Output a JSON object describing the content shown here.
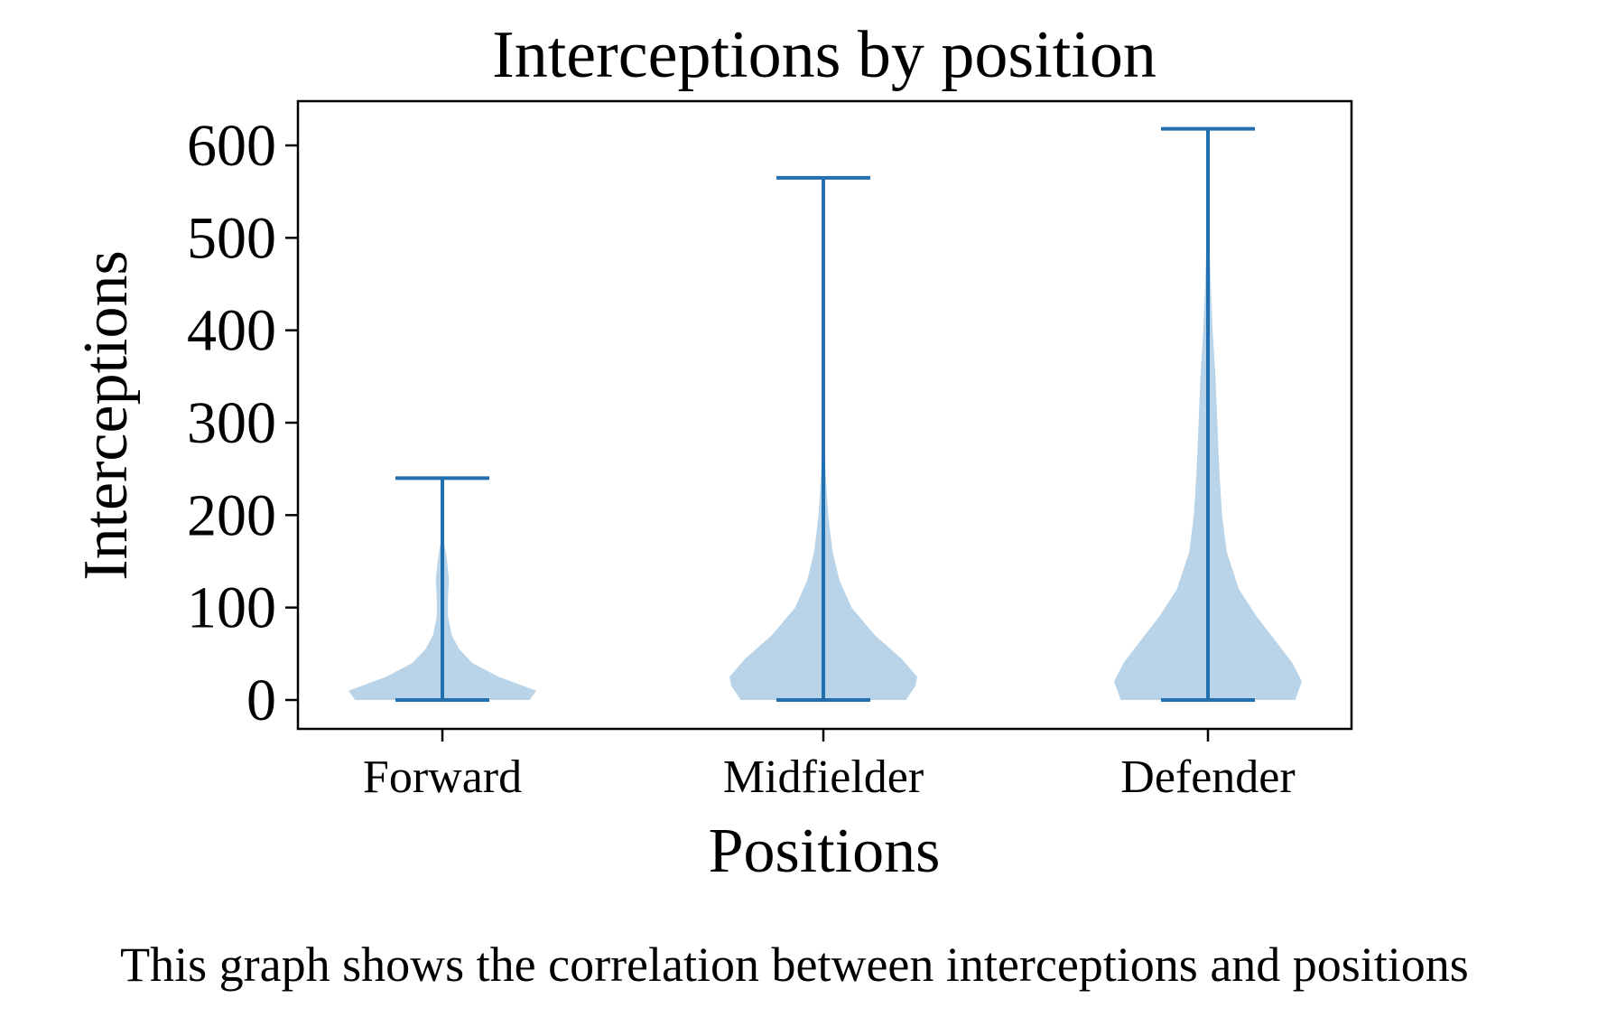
{
  "chart_data": {
    "type": "violin",
    "title": "Interceptions by position",
    "xlabel": "Positions",
    "ylabel": "Interceptions",
    "caption": "This graph shows the correlation between interceptions and positions",
    "categories": [
      "Forward",
      "Midfielder",
      "Defender"
    ],
    "ylim": [
      -30,
      650
    ],
    "yticks": [
      0,
      100,
      200,
      300,
      400,
      500,
      600
    ],
    "colors": {
      "body": "#b9d4e8",
      "line": "#2370b0"
    },
    "grid": false,
    "series": [
      {
        "category": "Forward",
        "min": 0,
        "max": 240,
        "density": [
          [
            0,
            0.93
          ],
          [
            10,
            1.0
          ],
          [
            25,
            0.6
          ],
          [
            40,
            0.32
          ],
          [
            55,
            0.18
          ],
          [
            70,
            0.1
          ],
          [
            90,
            0.06
          ],
          [
            110,
            0.06
          ],
          [
            130,
            0.07
          ],
          [
            150,
            0.05
          ],
          [
            170,
            0.02
          ],
          [
            190,
            0.01
          ],
          [
            240,
            0
          ]
        ]
      },
      {
        "category": "Midfielder",
        "min": 0,
        "max": 565,
        "density": [
          [
            0,
            0.88
          ],
          [
            15,
            0.98
          ],
          [
            25,
            1.0
          ],
          [
            45,
            0.83
          ],
          [
            70,
            0.55
          ],
          [
            100,
            0.3
          ],
          [
            130,
            0.17
          ],
          [
            160,
            0.1
          ],
          [
            200,
            0.05
          ],
          [
            250,
            0.022
          ],
          [
            300,
            0.012
          ],
          [
            400,
            0.008
          ],
          [
            460,
            0.006
          ],
          [
            520,
            0.003
          ],
          [
            565,
            0
          ]
        ]
      },
      {
        "category": "Defender",
        "min": 0,
        "max": 618,
        "density": [
          [
            0,
            0.93
          ],
          [
            20,
            1.0
          ],
          [
            40,
            0.9
          ],
          [
            60,
            0.75
          ],
          [
            90,
            0.52
          ],
          [
            120,
            0.33
          ],
          [
            160,
            0.2
          ],
          [
            200,
            0.15
          ],
          [
            250,
            0.12
          ],
          [
            300,
            0.1
          ],
          [
            350,
            0.08
          ],
          [
            400,
            0.05
          ],
          [
            450,
            0.03
          ],
          [
            500,
            0.015
          ],
          [
            560,
            0.005
          ],
          [
            618,
            0
          ]
        ]
      }
    ]
  }
}
